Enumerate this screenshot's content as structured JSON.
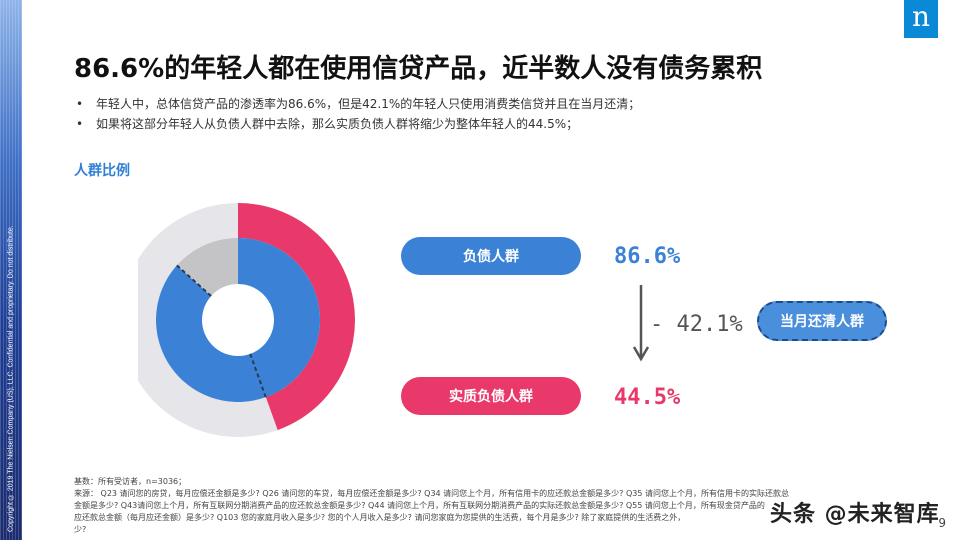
{
  "side_text": "Copyright © 2019 The Nielsen Company (US), LLC. Confidential and proprietary. Do not distribute.",
  "logo": "n",
  "title": "86.6%的年轻人都在使用信贷产品，近半数人没有债务累积",
  "bullets": [
    "年轻人中，总体信贷产品的渗透率为86.6%，但是42.1%的年轻人只使用消费类信贷并且在当月还清；",
    "如果将这部分年轻人从负债人群中去除，那么实质负债人群将缩少为整体年轻人的44.5%；"
  ],
  "section_label": "人群比例",
  "labels": {
    "debt": "负债人群",
    "real_debt": "实质负债人群",
    "cleared": "当月还清人群",
    "debt_pct": "86.6%",
    "drop_pct": "- 42.1%",
    "real_pct": "44.5%"
  },
  "colors": {
    "blue": "#3b82d6",
    "pink": "#e8396a",
    "gray_light": "#e6e6ea",
    "gray_mid": "#c4c4c6",
    "title": "#111111"
  },
  "chart_data": {
    "type": "pie",
    "rings": [
      {
        "ring": "outer",
        "slices": [
          {
            "label": "实质负债人群",
            "value": 44.5,
            "color": "#e8396a"
          },
          {
            "label": "",
            "value": 55.5,
            "color": "#e6e6ea"
          }
        ]
      },
      {
        "ring": "inner",
        "slices": [
          {
            "label": "负债人群",
            "value": 86.6,
            "color": "#3b82d6"
          },
          {
            "label": "",
            "value": 13.4,
            "color": "#c4c4c6"
          }
        ]
      }
    ],
    "annotations": [
      "负债人群 86.6%",
      "- 42.1% 当月还清人群",
      "实质负债人群 44.5%"
    ]
  },
  "footnote": [
    "基数：所有受访者，n=3036；",
    "来源： Q23 请问您的房贷，每月应偿还金额是多少? Q26 请问您的车贷，每月应偿还金额是多少? Q34 请问您上个月，所有信用卡的应还款总金额是多少? Q35 请问您上个月，所有信用卡的实际还款总",
    "金额是多少? Q43请问您上个月，所有互联网分期消费产品的应还款总金额是多少? Q44 请问您上个月，所有互联网分期消费产品的实际还款总金额是多少? Q55 请问您上个月，所有现金贷产品的",
    "应还款总金额（每月应还金额）是多少? Q103 您的家庭月收入是多少? 您的个人月收入是多少? 请问您家庭为您提供的生活费，每个月是多少? 除了家庭提供的生活费之外，",
    "少?"
  ],
  "watermark": "头条 @未来智库",
  "page_number": "9"
}
